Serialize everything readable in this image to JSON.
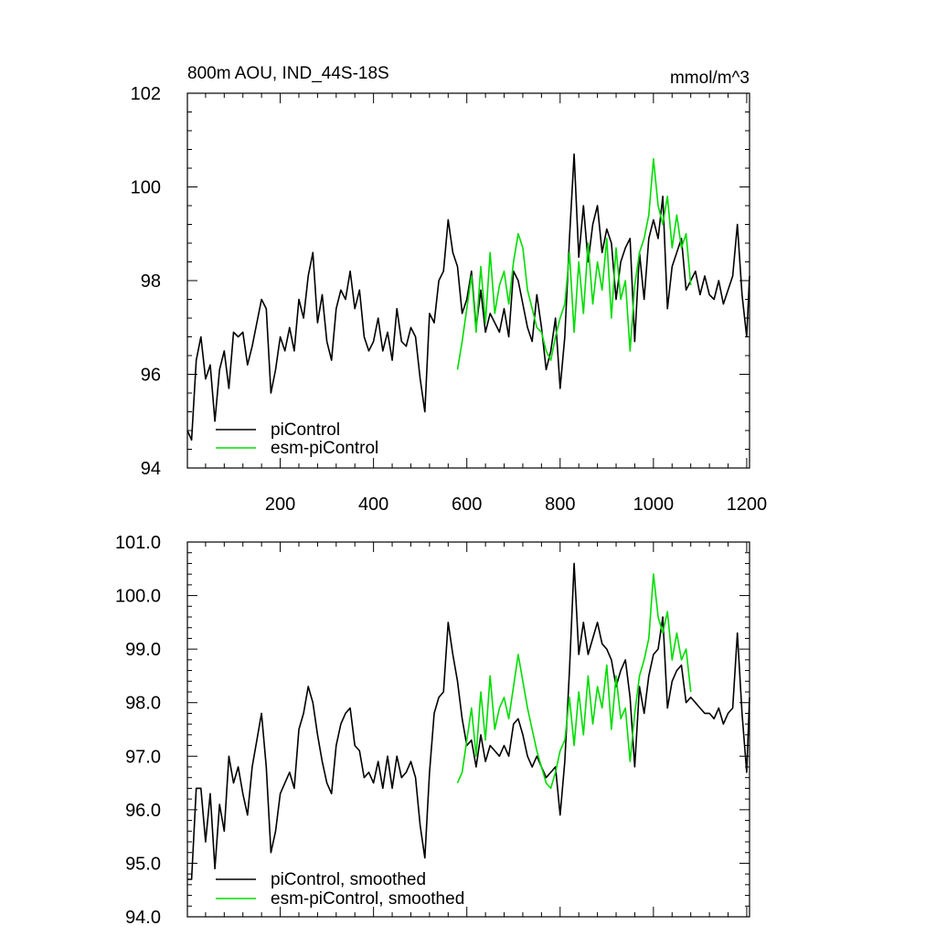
{
  "chart_data": [
    {
      "type": "line",
      "title": "800m AOU, IND_44S-18S",
      "units": "mmol/m^3",
      "xlabel": "",
      "ylabel": "",
      "xlim": [
        1,
        1206
      ],
      "ylim": [
        94,
        102
      ],
      "x_ticks": [
        200,
        400,
        600,
        800,
        1000,
        1200
      ],
      "x_tick_labels": [
        "200",
        "400",
        "600",
        "800",
        "1000",
        "1200"
      ],
      "y_ticks": [
        94,
        96,
        98,
        100,
        102
      ],
      "y_tick_labels": [
        "94",
        "96",
        "98",
        "100",
        "102"
      ],
      "grid": false,
      "legend_position": "bottom-left",
      "series": [
        {
          "name": "piControl",
          "color": "#000000",
          "x": [
            1,
            10,
            20,
            30,
            40,
            50,
            60,
            70,
            80,
            90,
            100,
            110,
            120,
            130,
            140,
            150,
            160,
            170,
            180,
            190,
            200,
            210,
            220,
            230,
            240,
            250,
            260,
            270,
            280,
            290,
            300,
            310,
            320,
            330,
            340,
            350,
            360,
            370,
            380,
            390,
            400,
            410,
            420,
            430,
            440,
            450,
            460,
            470,
            480,
            490,
            500,
            510,
            520,
            530,
            540,
            550,
            560,
            570,
            580,
            590,
            600,
            610,
            620,
            630,
            640,
            650,
            660,
            670,
            680,
            690,
            700,
            710,
            720,
            730,
            740,
            750,
            760,
            770,
            780,
            790,
            800,
            810,
            820,
            830,
            840,
            850,
            860,
            870,
            880,
            890,
            900,
            910,
            920,
            930,
            940,
            950,
            960,
            970,
            980,
            990,
            1000,
            1010,
            1020,
            1030,
            1040,
            1050,
            1060,
            1070,
            1080,
            1090,
            1100,
            1110,
            1120,
            1130,
            1140,
            1150,
            1160,
            1170,
            1180,
            1190,
            1200,
            1206
          ],
          "values": [
            94.8,
            94.6,
            96.3,
            96.8,
            95.9,
            96.2,
            95.0,
            96.1,
            96.5,
            95.7,
            96.9,
            96.8,
            96.9,
            96.2,
            96.6,
            97.1,
            97.6,
            97.4,
            95.6,
            96.1,
            96.8,
            96.5,
            97.0,
            96.5,
            97.6,
            97.2,
            98.1,
            98.6,
            97.1,
            97.7,
            96.7,
            96.3,
            97.4,
            97.8,
            97.6,
            98.2,
            97.4,
            97.8,
            96.8,
            96.5,
            96.7,
            97.2,
            96.5,
            96.9,
            96.3,
            97.4,
            96.7,
            96.6,
            97.0,
            96.8,
            95.9,
            95.2,
            97.3,
            97.1,
            98.0,
            98.2,
            99.3,
            98.6,
            98.3,
            97.3,
            97.6,
            98.2,
            97.0,
            97.8,
            96.9,
            97.3,
            97.1,
            96.9,
            97.4,
            96.8,
            98.2,
            98.0,
            97.5,
            97.0,
            96.7,
            97.7,
            97.0,
            96.1,
            96.5,
            97.2,
            95.7,
            96.8,
            98.9,
            100.7,
            98.5,
            99.6,
            98.4,
            99.2,
            99.6,
            98.6,
            99.1,
            98.8,
            97.6,
            98.4,
            98.7,
            98.9,
            96.7,
            98.6,
            97.6,
            98.9,
            99.3,
            98.9,
            99.8,
            97.4,
            98.3,
            98.6,
            98.9,
            97.8,
            98.0,
            98.2,
            97.7,
            98.1,
            97.7,
            97.6,
            98.0,
            97.5,
            97.8,
            98.1,
            99.2,
            97.7,
            96.8,
            98.1
          ]
        },
        {
          "name": "esm-piControl",
          "color": "#00dd00",
          "x": [
            580,
            590,
            600,
            610,
            620,
            630,
            640,
            650,
            660,
            670,
            680,
            690,
            700,
            710,
            720,
            730,
            740,
            750,
            760,
            770,
            780,
            790,
            800,
            810,
            820,
            830,
            840,
            850,
            860,
            870,
            880,
            890,
            900,
            910,
            920,
            930,
            940,
            950,
            960,
            970,
            980,
            990,
            1000,
            1010,
            1020,
            1030,
            1040,
            1050,
            1060,
            1070,
            1080
          ],
          "values": [
            96.1,
            96.7,
            97.4,
            98.1,
            96.9,
            98.3,
            97.1,
            98.6,
            97.3,
            97.9,
            98.2,
            97.5,
            98.4,
            99.0,
            98.7,
            97.8,
            97.4,
            97.0,
            96.9,
            96.5,
            96.3,
            96.8,
            97.2,
            97.5,
            98.6,
            96.9,
            98.4,
            97.3,
            98.8,
            97.5,
            98.4,
            97.8,
            98.9,
            97.2,
            98.7,
            97.6,
            98.0,
            96.5,
            97.9,
            98.6,
            98.9,
            99.4,
            100.6,
            99.6,
            99.2,
            99.8,
            98.7,
            99.4,
            98.7,
            99.0,
            97.9
          ]
        }
      ]
    },
    {
      "type": "line",
      "title": "",
      "xlabel": "",
      "ylabel": "",
      "xlim": [
        1,
        1206
      ],
      "ylim": [
        94.0,
        101.0
      ],
      "x_ticks": [
        200,
        400,
        600,
        800,
        1000,
        1200
      ],
      "x_tick_labels": [],
      "y_ticks": [
        94.0,
        95.0,
        96.0,
        97.0,
        98.0,
        99.0,
        100.0,
        101.0
      ],
      "y_tick_labels": [
        "94.0",
        "95.0",
        "96.0",
        "97.0",
        "98.0",
        "99.0",
        "100.0",
        "101.0"
      ],
      "grid": false,
      "legend_position": "bottom-left",
      "series": [
        {
          "name": "piControl, smoothed",
          "color": "#000000",
          "x": [
            1,
            10,
            20,
            30,
            40,
            50,
            60,
            70,
            80,
            90,
            100,
            110,
            120,
            130,
            140,
            150,
            160,
            170,
            180,
            190,
            200,
            210,
            220,
            230,
            240,
            250,
            260,
            270,
            280,
            290,
            300,
            310,
            320,
            330,
            340,
            350,
            360,
            370,
            380,
            390,
            400,
            410,
            420,
            430,
            440,
            450,
            460,
            470,
            480,
            490,
            500,
            510,
            520,
            530,
            540,
            550,
            560,
            570,
            580,
            590,
            600,
            610,
            620,
            630,
            640,
            650,
            660,
            670,
            680,
            690,
            700,
            710,
            720,
            730,
            740,
            750,
            760,
            770,
            780,
            790,
            800,
            810,
            820,
            830,
            840,
            850,
            860,
            870,
            880,
            890,
            900,
            910,
            920,
            930,
            940,
            950,
            960,
            970,
            980,
            990,
            1000,
            1010,
            1020,
            1030,
            1040,
            1050,
            1060,
            1070,
            1080,
            1090,
            1100,
            1110,
            1120,
            1130,
            1140,
            1150,
            1160,
            1170,
            1180,
            1190,
            1200,
            1206
          ],
          "values": [
            94.7,
            94.7,
            96.4,
            96.4,
            95.4,
            96.3,
            94.9,
            96.1,
            95.6,
            97.0,
            96.5,
            96.8,
            96.3,
            95.9,
            96.8,
            97.3,
            97.8,
            96.8,
            95.2,
            95.6,
            96.3,
            96.5,
            96.7,
            96.4,
            97.5,
            97.8,
            98.3,
            98.0,
            97.4,
            96.9,
            96.5,
            96.3,
            97.2,
            97.6,
            97.8,
            97.9,
            97.2,
            97.1,
            96.6,
            96.7,
            96.5,
            96.9,
            96.4,
            97.0,
            96.4,
            97.0,
            96.6,
            96.7,
            96.9,
            96.6,
            95.7,
            95.1,
            96.7,
            97.8,
            98.1,
            98.2,
            99.5,
            98.9,
            98.4,
            97.7,
            97.2,
            97.3,
            96.8,
            97.4,
            96.9,
            97.2,
            97.1,
            97.0,
            97.2,
            97.0,
            97.6,
            97.7,
            97.4,
            97.0,
            96.8,
            97.0,
            96.8,
            96.6,
            96.7,
            96.8,
            95.9,
            96.9,
            98.6,
            100.6,
            98.9,
            99.5,
            98.9,
            99.2,
            99.5,
            99.1,
            99.0,
            98.8,
            98.3,
            98.6,
            98.8,
            98.1,
            96.8,
            98.3,
            97.8,
            98.5,
            98.9,
            99.0,
            99.6,
            97.9,
            98.4,
            98.6,
            98.7,
            98.0,
            98.1,
            98.0,
            97.9,
            97.8,
            97.8,
            97.7,
            97.9,
            97.6,
            97.8,
            97.9,
            99.3,
            97.8,
            96.7,
            98.1
          ]
        },
        {
          "name": "esm-piControl, smoothed",
          "color": "#00dd00",
          "x": [
            580,
            590,
            600,
            610,
            620,
            630,
            640,
            650,
            660,
            670,
            680,
            690,
            700,
            710,
            720,
            730,
            740,
            750,
            760,
            770,
            780,
            790,
            800,
            810,
            820,
            830,
            840,
            850,
            860,
            870,
            880,
            890,
            900,
            910,
            920,
            930,
            940,
            950,
            960,
            970,
            980,
            990,
            1000,
            1010,
            1020,
            1030,
            1040,
            1050,
            1060,
            1070,
            1080
          ],
          "values": [
            96.5,
            96.7,
            97.3,
            97.9,
            97.0,
            98.2,
            97.3,
            98.5,
            97.5,
            97.9,
            98.1,
            97.7,
            98.3,
            98.9,
            98.4,
            97.9,
            97.5,
            97.1,
            96.8,
            96.5,
            96.4,
            96.7,
            97.1,
            97.3,
            98.1,
            97.2,
            98.2,
            97.4,
            98.5,
            97.6,
            98.3,
            97.9,
            98.7,
            97.5,
            98.5,
            97.7,
            97.9,
            96.9,
            97.8,
            98.5,
            98.8,
            99.2,
            100.4,
            99.6,
            99.3,
            99.7,
            98.8,
            99.3,
            98.8,
            99.0,
            98.2
          ]
        }
      ]
    }
  ]
}
